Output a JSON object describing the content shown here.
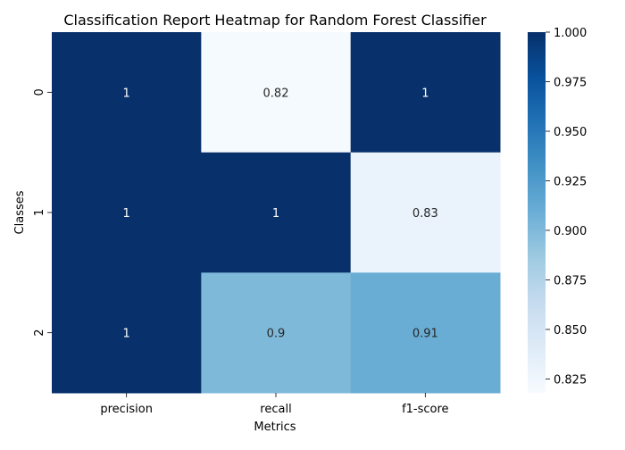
{
  "chart_data": {
    "type": "heatmap",
    "title": "Classification Report Heatmap for Random Forest Classifier",
    "xlabel": "Metrics",
    "ylabel": "Classes",
    "x_categories": [
      "precision",
      "recall",
      "f1-score"
    ],
    "y_categories": [
      "0",
      "1",
      "2"
    ],
    "values": [
      [
        1.0,
        0.82,
        1.0
      ],
      [
        1.0,
        1.0,
        0.83
      ],
      [
        1.0,
        0.9,
        0.91
      ]
    ],
    "cell_labels": [
      [
        "1",
        "0.82",
        "1"
      ],
      [
        "1",
        "1",
        "0.83"
      ],
      [
        "1",
        "0.9",
        "0.91"
      ]
    ],
    "colormap": "Blues",
    "color_range": [
      0.818,
      1.0
    ],
    "colorbar_ticks": [
      "1.000",
      "0.975",
      "0.950",
      "0.925",
      "0.900",
      "0.875",
      "0.850",
      "0.825"
    ],
    "colorbar_tick_values": [
      1.0,
      0.975,
      0.95,
      0.925,
      0.9,
      0.875,
      0.85,
      0.825
    ],
    "grid": false,
    "legend": "colorbar-right"
  }
}
